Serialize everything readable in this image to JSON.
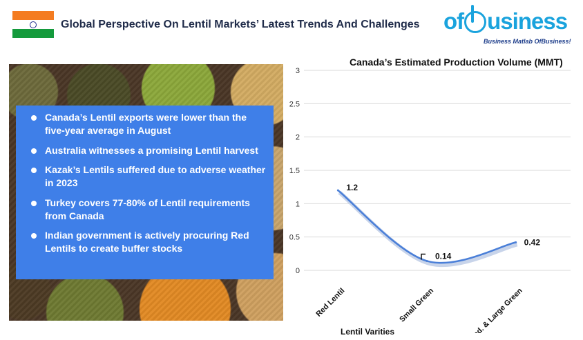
{
  "header": {
    "title": "Global Perspective On Lentil Markets’ Latest Trends And Challenges",
    "flag_icon": "india-flag-icon"
  },
  "logo": {
    "word_left": "of",
    "word_right": "usiness",
    "tagline": "Business Matlab OfBusiness!",
    "color": "#1aa3dd"
  },
  "bullets": [
    "Canada’s Lentil exports were lower than the five-year average in August",
    "Australia witnesses a promising Lentil harvest",
    "Kazak’s Lentils suffered due to adverse weather in 2023",
    "Turkey covers 77-80% of Lentil requirements from Canada",
    "Indian government is actively procuring Red Lentils to create buffer stocks"
  ],
  "chart_data": {
    "type": "line",
    "title": "Canada’s Estimated Production Volume (MMT)",
    "xlabel": "Lentil  Varities",
    "ylabel": "",
    "categories": [
      "Red Lentil",
      "Small Green",
      "Med. & Large Green"
    ],
    "series": [
      {
        "values": [
          1.2,
          0.14,
          0.42
        ],
        "color": "#4a7fd8"
      }
    ],
    "data_labels": [
      "1.2",
      "0.14",
      "0.42"
    ],
    "ylim": [
      0,
      3
    ],
    "yticks": [
      "0",
      "0.5",
      "1",
      "1.5",
      "2",
      "2.5",
      "3"
    ],
    "grid": true,
    "smooth": true,
    "legend": "none"
  },
  "colors": {
    "bullet_box": "#3f7fe8",
    "title_text": "#1f2b49"
  }
}
